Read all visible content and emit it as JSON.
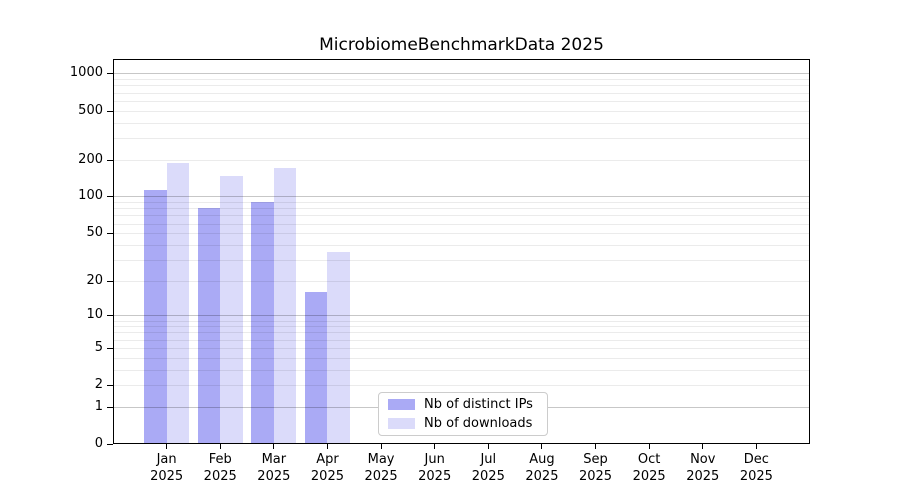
{
  "page": {
    "background_color": "#ffffff",
    "text_color": "#000000"
  },
  "chart_data": {
    "type": "bar",
    "title": "MicrobiomeBenchmarkData 2025",
    "year_label": "2025",
    "categories": [
      "Jan",
      "Feb",
      "Mar",
      "Apr",
      "May",
      "Jun",
      "Jul",
      "Aug",
      "Sep",
      "Oct",
      "Nov",
      "Dec"
    ],
    "series": [
      {
        "name": "Nb of distinct IPs",
        "color": "#aaaaf5",
        "values": [
          114,
          80,
          90,
          16,
          null,
          null,
          null,
          null,
          null,
          null,
          null,
          null
        ]
      },
      {
        "name": "Nb of downloads",
        "color": "#dbdbfa",
        "values": [
          186,
          148,
          172,
          35,
          null,
          null,
          null,
          null,
          null,
          null,
          null,
          null
        ]
      }
    ],
    "y_axis": {
      "scale": "log10(1+x)",
      "tick_labels": [
        0,
        1,
        2,
        5,
        10,
        20,
        50,
        100,
        200,
        500,
        1000
      ],
      "major_gridlines": [
        1,
        10,
        100,
        1000
      ],
      "minor_gridlines": [
        2,
        3,
        4,
        5,
        6,
        7,
        8,
        9,
        20,
        30,
        40,
        50,
        60,
        70,
        80,
        90,
        200,
        300,
        400,
        500,
        600,
        700,
        800,
        900
      ],
      "range_top_value": 1300
    },
    "legend": {
      "position": "bottom-center"
    },
    "grid": true
  },
  "colors": {
    "major_gridline": "rgba(0,0,0,0.22)",
    "minor_gridline": "rgba(0,0,0,0.08)",
    "axis_frame": "#000000",
    "legend_border": "#cccccc"
  }
}
